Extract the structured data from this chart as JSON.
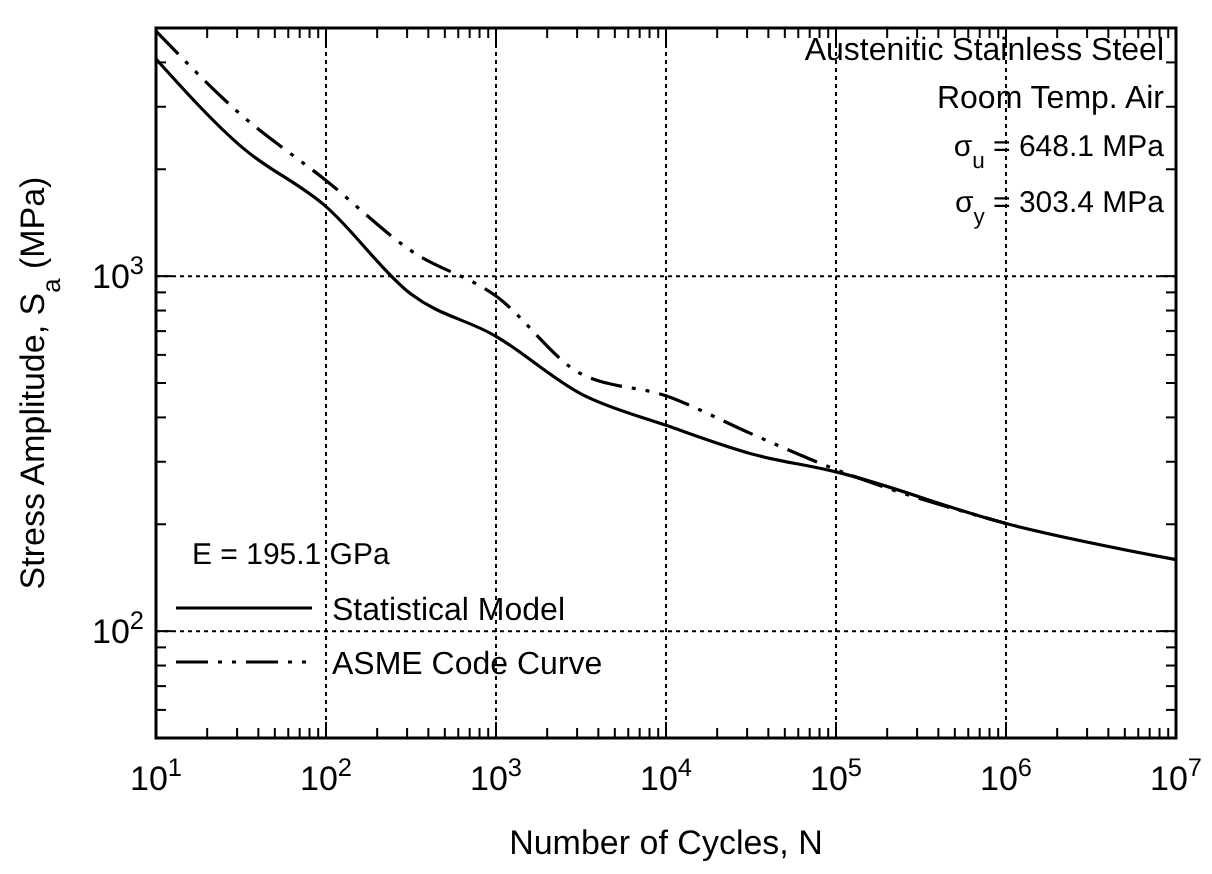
{
  "chart_data": {
    "type": "line",
    "xlabel": "Number of Cycles, N",
    "ylabel": "Stress Amplitude, S$_{a}$ (MPa)",
    "log": "xy",
    "grid": true,
    "legend": "bottom left",
    "xlim": [
      10,
      10000000
    ],
    "ylim": [
      50,
      5000
    ],
    "xticks": [
      {
        "value": 10,
        "label": "10$^{1}$"
      },
      {
        "value": 20,
        "label": null
      },
      {
        "value": 30,
        "label": null
      },
      {
        "value": 40,
        "label": null
      },
      {
        "value": 50,
        "label": null
      },
      {
        "value": 60,
        "label": null
      },
      {
        "value": 70,
        "label": null
      },
      {
        "value": 80,
        "label": null
      },
      {
        "value": 90,
        "label": null
      },
      {
        "value": 100,
        "label": "10$^{2}$"
      },
      {
        "value": 200,
        "label": null
      },
      {
        "value": 300,
        "label": null
      },
      {
        "value": 400,
        "label": null
      },
      {
        "value": 500,
        "label": null
      },
      {
        "value": 600,
        "label": null
      },
      {
        "value": 700,
        "label": null
      },
      {
        "value": 800,
        "label": null
      },
      {
        "value": 900,
        "label": null
      },
      {
        "value": 1000,
        "label": "10$^{3}$"
      },
      {
        "value": 2000,
        "label": null
      },
      {
        "value": 3000,
        "label": null
      },
      {
        "value": 4000,
        "label": null
      },
      {
        "value": 5000,
        "label": null
      },
      {
        "value": 6000,
        "label": null
      },
      {
        "value": 7000,
        "label": null
      },
      {
        "value": 8000,
        "label": null
      },
      {
        "value": 9000,
        "label": null
      },
      {
        "value": 10000,
        "label": "10$^{4}$"
      },
      {
        "value": 20000,
        "label": null
      },
      {
        "value": 30000,
        "label": null
      },
      {
        "value": 40000,
        "label": null
      },
      {
        "value": 50000,
        "label": null
      },
      {
        "value": 60000,
        "label": null
      },
      {
        "value": 70000,
        "label": null
      },
      {
        "value": 80000,
        "label": null
      },
      {
        "value": 90000,
        "label": null
      },
      {
        "value": 100000,
        "label": "10$^{5}$"
      },
      {
        "value": 200000,
        "label": null
      },
      {
        "value": 300000,
        "label": null
      },
      {
        "value": 400000,
        "label": null
      },
      {
        "value": 500000,
        "label": null
      },
      {
        "value": 600000,
        "label": null
      },
      {
        "value": 700000,
        "label": null
      },
      {
        "value": 800000,
        "label": null
      },
      {
        "value": 900000,
        "label": null
      },
      {
        "value": 1000000,
        "label": "10$^{6}$"
      },
      {
        "value": 2000000,
        "label": null
      },
      {
        "value": 3000000,
        "label": null
      },
      {
        "value": 4000000,
        "label": null
      },
      {
        "value": 5000000,
        "label": null
      },
      {
        "value": 6000000,
        "label": null
      },
      {
        "value": 7000000,
        "label": null
      },
      {
        "value": 8000000,
        "label": null
      },
      {
        "value": 9000000,
        "label": null
      },
      {
        "value": 10000000,
        "label": "10$^{7}$"
      }
    ],
    "yticks": [
      {
        "value": 60,
        "label": null
      },
      {
        "value": 70,
        "label": null
      },
      {
        "value": 80,
        "label": null
      },
      {
        "value": 90,
        "label": null
      },
      {
        "value": 100,
        "label": "10$^{2}$"
      },
      {
        "value": 200,
        "label": null
      },
      {
        "value": 300,
        "label": null
      },
      {
        "value": 400,
        "label": null
      },
      {
        "value": 500,
        "label": null
      },
      {
        "value": 600,
        "label": null
      },
      {
        "value": 700,
        "label": null
      },
      {
        "value": 800,
        "label": null
      },
      {
        "value": 900,
        "label": null
      },
      {
        "value": 1000,
        "label": "10$^{3}$"
      },
      {
        "value": 2000,
        "label": null
      },
      {
        "value": 3000,
        "label": null
      },
      {
        "value": 4000,
        "label": null
      }
    ],
    "series": [
      {
        "name": "Statistical Model",
        "color": "#000000",
        "line_style": "solid",
        "x": [
          10,
          31.6,
          100,
          316,
          1000,
          3160,
          10000,
          31600,
          100000,
          1000000,
          10000000
        ],
        "values": [
          4090,
          2320,
          1570,
          890,
          677,
          466,
          380,
          316,
          281,
          201,
          159
        ]
      },
      {
        "name": "ASME Code Curve",
        "color": "#000000",
        "line_style": "dashed",
        "x": [
          10,
          31.6,
          100,
          316,
          1000,
          3160,
          10000,
          31600,
          100000,
          1000000
        ],
        "values": [
          4900,
          2850,
          1860,
          1180,
          879,
          531,
          460,
          360,
          285,
          201
        ]
      }
    ],
    "annotations": [
      "Austenitic Stainless Steel",
      "Room Temp. Air",
      "σ$_{u}$ = 648.1 MPa",
      "σ$_{y}$ = 303.4 MPa",
      "E = 195.1 GPa"
    ]
  }
}
